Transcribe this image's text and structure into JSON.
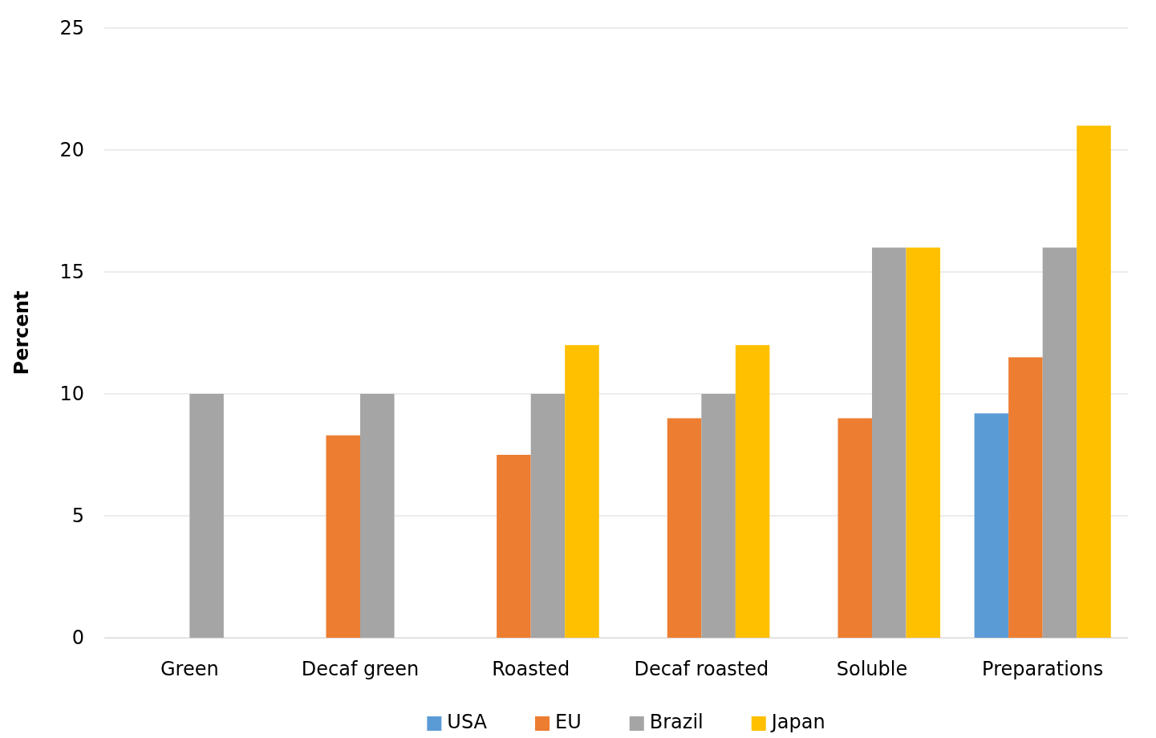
{
  "chart_data": {
    "type": "bar",
    "ylabel": "Percent",
    "categories": [
      "Green",
      "Decaf green",
      "Roasted",
      "Decaf roasted",
      "Soluble",
      "Preparations"
    ],
    "series": [
      {
        "name": "USA",
        "color": "#5b9bd5",
        "values": [
          0,
          0,
          0,
          0,
          0,
          9.2
        ]
      },
      {
        "name": "EU",
        "color": "#ed7d31",
        "values": [
          0,
          8.3,
          7.5,
          9,
          9,
          11.5
        ]
      },
      {
        "name": "Brazil",
        "color": "#a5a5a5",
        "values": [
          10,
          10,
          10,
          10,
          16,
          16
        ]
      },
      {
        "name": "Japan",
        "color": "#ffc000",
        "values": [
          0,
          0,
          12,
          12,
          16,
          21
        ]
      }
    ],
    "ylim": [
      0,
      25
    ],
    "yticks": [
      0,
      5,
      10,
      15,
      20,
      25
    ],
    "grid": "y",
    "legend": "bottom"
  }
}
